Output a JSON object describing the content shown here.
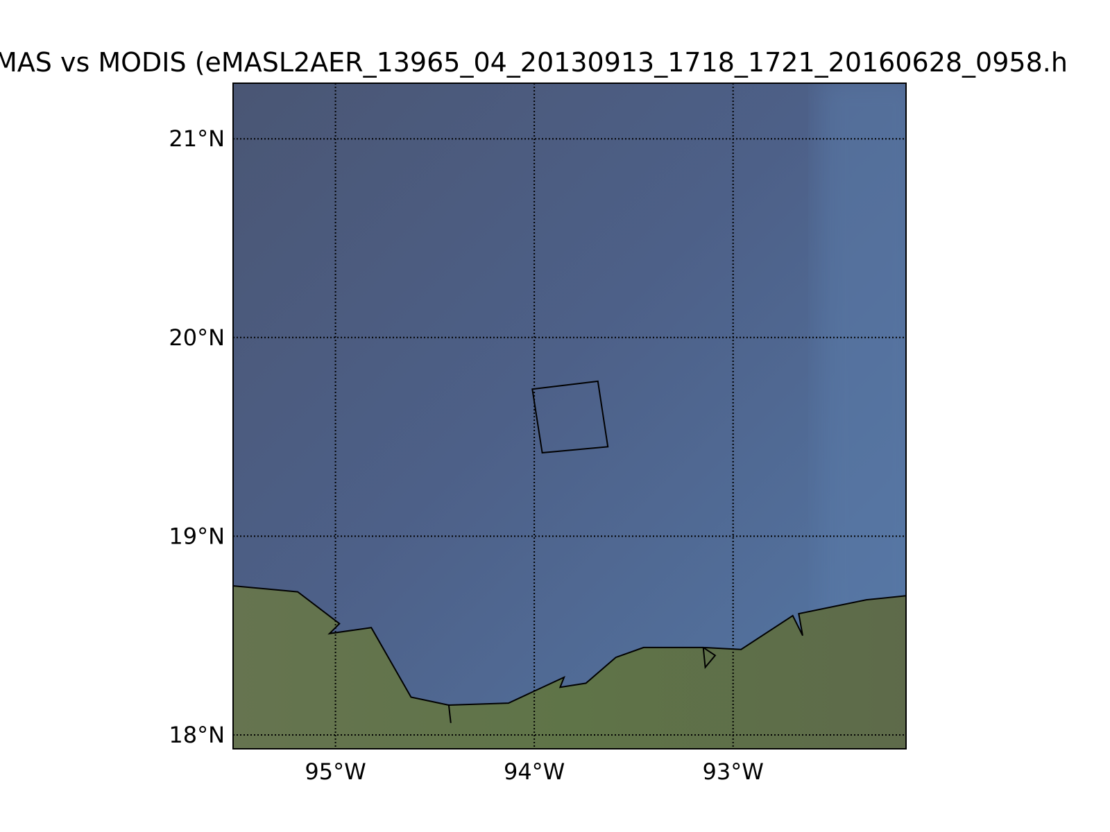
{
  "title": "MAS vs MODIS (eMASL2AER_13965_04_20130913_1718_1721_20160628_0958.h",
  "map": {
    "lon_range": [
      -95.515,
      -92.13
    ],
    "lat_range": [
      17.93,
      21.28
    ],
    "meridians": [
      {
        "value": -95,
        "label": "95°W"
      },
      {
        "value": -94,
        "label": "94°W"
      },
      {
        "value": -93,
        "label": "93°W"
      }
    ],
    "parallels": [
      {
        "value": 21,
        "label": "21°N"
      },
      {
        "value": 20,
        "label": "20°N"
      },
      {
        "value": 19,
        "label": "19°N"
      },
      {
        "value": 18,
        "label": "18°N"
      }
    ],
    "grid_style": "dotted",
    "colors": {
      "sea_dark": "#4a5878",
      "sea_light": "#5577a3",
      "land": "#5f7048",
      "line": "#000000"
    },
    "footprint": [
      [
        -94.01,
        19.74
      ],
      [
        -93.68,
        19.78
      ],
      [
        -93.63,
        19.45
      ],
      [
        -93.96,
        19.42
      ]
    ],
    "coastline": [
      [
        -95.515,
        18.75
      ],
      [
        -95.19,
        18.72
      ],
      [
        -94.98,
        18.56
      ],
      [
        -95.03,
        18.51
      ],
      [
        -94.82,
        18.54
      ],
      [
        -94.62,
        18.19
      ],
      [
        -94.43,
        18.15
      ],
      [
        -94.42,
        18.06
      ],
      [
        -94.43,
        18.15
      ],
      [
        -94.13,
        18.16
      ],
      [
        -93.85,
        18.29
      ],
      [
        -93.87,
        18.24
      ],
      [
        -93.74,
        18.26
      ],
      [
        -93.59,
        18.39
      ],
      [
        -93.45,
        18.44
      ],
      [
        -93.15,
        18.44
      ],
      [
        -93.09,
        18.4
      ],
      [
        -93.14,
        18.34
      ],
      [
        -93.15,
        18.44
      ],
      [
        -92.96,
        18.43
      ],
      [
        -92.7,
        18.6
      ],
      [
        -92.65,
        18.5
      ],
      [
        -92.67,
        18.61
      ],
      [
        -92.33,
        18.68
      ],
      [
        -92.13,
        18.7
      ]
    ]
  }
}
